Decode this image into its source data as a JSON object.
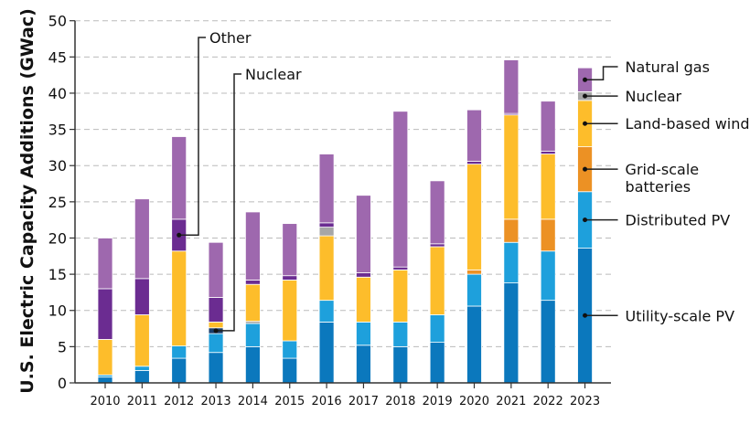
{
  "chart_data": {
    "type": "bar",
    "stacked": true,
    "title": "",
    "xlabel": "",
    "ylabel": "U.S. Electric Capacity Additions (GWac)",
    "ylim": [
      0,
      50
    ],
    "yticks": [
      0,
      5,
      10,
      15,
      20,
      25,
      30,
      35,
      40,
      45,
      50
    ],
    "grid": "horizontal dashed",
    "legend": "right, labels pointing to 2023 bar",
    "categories": [
      "2010",
      "2011",
      "2012",
      "2013",
      "2014",
      "2015",
      "2016",
      "2017",
      "2018",
      "2019",
      "2020",
      "2021",
      "2022",
      "2023"
    ],
    "series": [
      {
        "key": "utility_pv",
        "name": "Utility-scale PV",
        "color": "#0b78bd"
      },
      {
        "key": "distributed_pv",
        "name": "Distributed PV",
        "color": "#1ea0dc"
      },
      {
        "key": "batteries",
        "name": "Grid-scale batteries",
        "color": "#ec9124"
      },
      {
        "key": "wind",
        "name": "Land-based wind",
        "color": "#fdbd2b"
      },
      {
        "key": "nuclear",
        "name": "Nuclear",
        "color": "#a6a6a6"
      },
      {
        "key": "other",
        "name": "Other",
        "color": "#6b2c91"
      },
      {
        "key": "natural_gas",
        "name": "Natural gas",
        "color": "#9e68ae"
      }
    ],
    "bars": [
      {
        "year": "2010",
        "segments": [
          [
            "utility_pv",
            0.8
          ],
          [
            "distributed_pv",
            0.3
          ],
          [
            "wind",
            4.9
          ],
          [
            "other",
            7.0
          ],
          [
            "natural_gas",
            7.0
          ]
        ]
      },
      {
        "year": "2011",
        "segments": [
          [
            "utility_pv",
            1.7
          ],
          [
            "distributed_pv",
            0.6
          ],
          [
            "wind",
            7.1
          ],
          [
            "other",
            5.0
          ],
          [
            "natural_gas",
            11.0
          ]
        ]
      },
      {
        "year": "2012",
        "segments": [
          [
            "utility_pv",
            3.4
          ],
          [
            "distributed_pv",
            1.7
          ],
          [
            "wind",
            13.1
          ],
          [
            "other",
            4.4
          ],
          [
            "natural_gas",
            11.4
          ]
        ]
      },
      {
        "year": "2013",
        "segments": [
          [
            "utility_pv",
            4.2
          ],
          [
            "distributed_pv",
            2.6
          ],
          [
            "nuclear",
            0.8
          ],
          [
            "wind",
            0.8
          ],
          [
            "other",
            3.4
          ],
          [
            "natural_gas",
            7.6
          ]
        ]
      },
      {
        "year": "2014",
        "segments": [
          [
            "utility_pv",
            5.0
          ],
          [
            "distributed_pv",
            3.2
          ],
          [
            "nuclear",
            0.3
          ],
          [
            "wind",
            5.1
          ],
          [
            "other",
            0.6
          ],
          [
            "natural_gas",
            9.4
          ]
        ]
      },
      {
        "year": "2015",
        "segments": [
          [
            "utility_pv",
            3.4
          ],
          [
            "distributed_pv",
            2.4
          ],
          [
            "wind",
            8.4
          ],
          [
            "other",
            0.6
          ],
          [
            "natural_gas",
            7.2
          ]
        ]
      },
      {
        "year": "2016",
        "segments": [
          [
            "utility_pv",
            8.4
          ],
          [
            "distributed_pv",
            3.0
          ],
          [
            "wind",
            8.9
          ],
          [
            "nuclear",
            1.2
          ],
          [
            "other",
            0.6
          ],
          [
            "natural_gas",
            9.5
          ]
        ]
      },
      {
        "year": "2017",
        "segments": [
          [
            "utility_pv",
            5.2
          ],
          [
            "distributed_pv",
            3.2
          ],
          [
            "wind",
            6.2
          ],
          [
            "other",
            0.6
          ],
          [
            "natural_gas",
            10.7
          ]
        ]
      },
      {
        "year": "2018",
        "segments": [
          [
            "utility_pv",
            5.0
          ],
          [
            "distributed_pv",
            3.4
          ],
          [
            "wind",
            7.2
          ],
          [
            "other",
            0.4
          ],
          [
            "natural_gas",
            21.5
          ]
        ]
      },
      {
        "year": "2019",
        "segments": [
          [
            "utility_pv",
            5.6
          ],
          [
            "distributed_pv",
            3.8
          ],
          [
            "wind",
            9.4
          ],
          [
            "other",
            0.4
          ],
          [
            "natural_gas",
            8.7
          ]
        ]
      },
      {
        "year": "2020",
        "segments": [
          [
            "utility_pv",
            10.6
          ],
          [
            "distributed_pv",
            4.4
          ],
          [
            "batteries",
            0.6
          ],
          [
            "wind",
            14.6
          ],
          [
            "other",
            0.4
          ],
          [
            "natural_gas",
            7.1
          ]
        ]
      },
      {
        "year": "2021",
        "segments": [
          [
            "utility_pv",
            13.8
          ],
          [
            "distributed_pv",
            5.6
          ],
          [
            "batteries",
            3.2
          ],
          [
            "wind",
            14.4
          ],
          [
            "other",
            0.2
          ],
          [
            "natural_gas",
            7.4
          ]
        ]
      },
      {
        "year": "2022",
        "segments": [
          [
            "utility_pv",
            11.4
          ],
          [
            "distributed_pv",
            6.8
          ],
          [
            "batteries",
            4.4
          ],
          [
            "wind",
            9.0
          ],
          [
            "other",
            0.4
          ],
          [
            "natural_gas",
            6.9
          ]
        ]
      },
      {
        "year": "2023",
        "segments": [
          [
            "utility_pv",
            18.6
          ],
          [
            "distributed_pv",
            7.8
          ],
          [
            "batteries",
            6.2
          ],
          [
            "wind",
            6.4
          ],
          [
            "nuclear",
            1.2
          ],
          [
            "natural_gas",
            3.3
          ]
        ]
      }
    ],
    "annotations": [
      {
        "text": "Other",
        "year": "2012",
        "series": "other"
      },
      {
        "text": "Nuclear",
        "year": "2013",
        "series": "nuclear",
        "color": "#1a3d6b"
      }
    ],
    "legend_labels": [
      {
        "series": "natural_gas",
        "lines": [
          "Natural gas"
        ]
      },
      {
        "series": "nuclear",
        "lines": [
          "Nuclear"
        ]
      },
      {
        "series": "wind",
        "lines": [
          "Land-based wind"
        ]
      },
      {
        "series": "batteries",
        "lines": [
          "Grid-scale",
          "batteries"
        ]
      },
      {
        "series": "distributed_pv",
        "lines": [
          "Distributed PV"
        ]
      },
      {
        "series": "utility_pv",
        "lines": [
          "Utility-scale PV"
        ]
      }
    ]
  }
}
